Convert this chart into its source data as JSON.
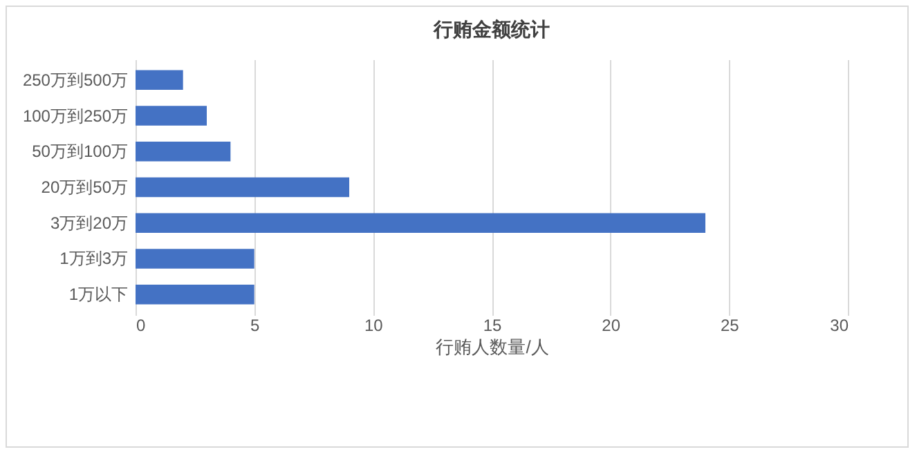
{
  "chart_data": {
    "type": "bar",
    "orientation": "horizontal",
    "title": "行贿金额统计",
    "xlabel": "行贿人数量/人",
    "categories": [
      "250万到500万",
      "100万到250万",
      "50万到100万",
      "20万到50万",
      "3万到20万",
      "1万到3万",
      "1万以下"
    ],
    "values": [
      2,
      3,
      4,
      9,
      24,
      5,
      5
    ],
    "color": "#4472c4",
    "xlim": [
      0,
      30
    ],
    "xticks": [
      0,
      5,
      10,
      15,
      20,
      25,
      30
    ],
    "grid": "x"
  }
}
